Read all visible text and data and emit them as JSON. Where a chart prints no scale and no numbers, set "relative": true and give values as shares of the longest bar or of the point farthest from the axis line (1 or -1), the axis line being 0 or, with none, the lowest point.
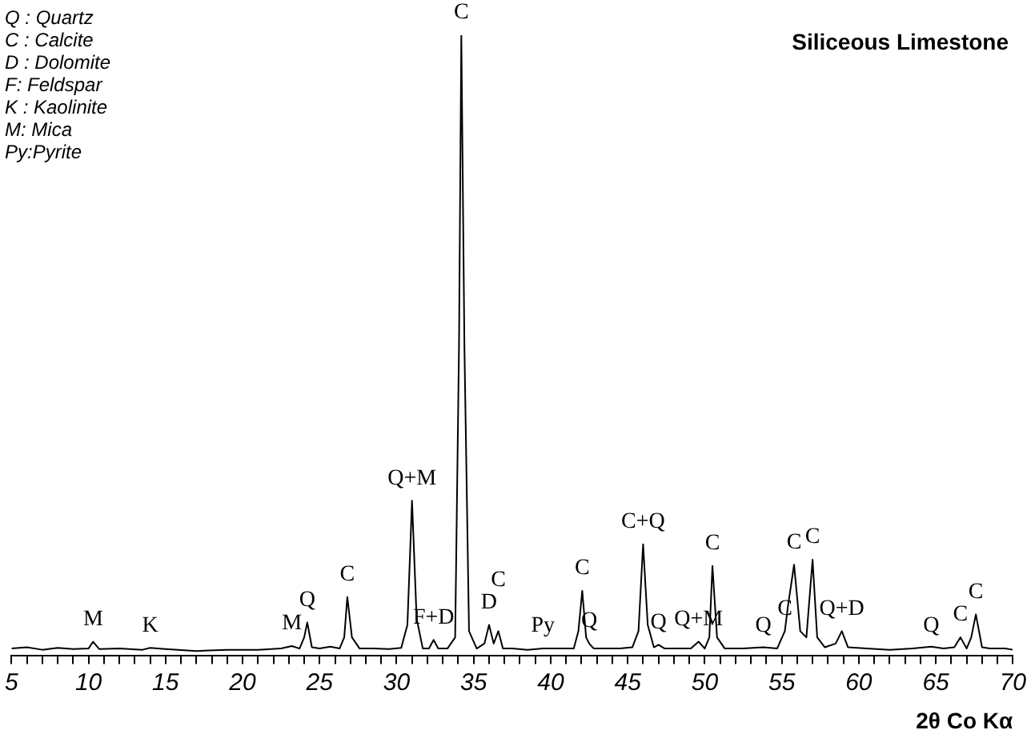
{
  "chart_data": {
    "type": "line",
    "relative": true,
    "title": "Siliceous Limestone",
    "xlabel": "2θ Co Kα",
    "xlim": [
      5,
      70
    ],
    "xticks": [
      5,
      {
        "value": 6,
        "label": null
      },
      {
        "value": 7,
        "label": null
      },
      {
        "value": 8,
        "label": null
      },
      {
        "value": 9,
        "label": null
      },
      10,
      {
        "value": 11,
        "label": null
      },
      {
        "value": 12,
        "label": null
      },
      {
        "value": 13,
        "label": null
      },
      {
        "value": 14,
        "label": null
      },
      15,
      {
        "value": 16,
        "label": null
      },
      {
        "value": 17,
        "label": null
      },
      {
        "value": 18,
        "label": null
      },
      {
        "value": 19,
        "label": null
      },
      20,
      {
        "value": 21,
        "label": null
      },
      {
        "value": 22,
        "label": null
      },
      {
        "value": 23,
        "label": null
      },
      {
        "value": 24,
        "label": null
      },
      25,
      {
        "value": 26,
        "label": null
      },
      {
        "value": 27,
        "label": null
      },
      {
        "value": 28,
        "label": null
      },
      {
        "value": 29,
        "label": null
      },
      30,
      {
        "value": 31,
        "label": null
      },
      {
        "value": 32,
        "label": null
      },
      {
        "value": 33,
        "label": null
      },
      {
        "value": 34,
        "label": null
      },
      35,
      {
        "value": 36,
        "label": null
      },
      {
        "value": 37,
        "label": null
      },
      {
        "value": 38,
        "label": null
      },
      {
        "value": 39,
        "label": null
      },
      40,
      {
        "value": 41,
        "label": null
      },
      {
        "value": 42,
        "label": null
      },
      {
        "value": 43,
        "label": null
      },
      {
        "value": 44,
        "label": null
      },
      45,
      {
        "value": 46,
        "label": null
      },
      {
        "value": 47,
        "label": null
      },
      {
        "value": 48,
        "label": null
      },
      {
        "value": 49,
        "label": null
      },
      50,
      {
        "value": 51,
        "label": null
      },
      {
        "value": 52,
        "label": null
      },
      {
        "value": 53,
        "label": null
      },
      {
        "value": 54,
        "label": null
      },
      55,
      {
        "value": 56,
        "label": null
      },
      {
        "value": 57,
        "label": null
      },
      {
        "value": 58,
        "label": null
      },
      {
        "value": 59,
        "label": null
      },
      60,
      {
        "value": 61,
        "label": null
      },
      {
        "value": 62,
        "label": null
      },
      {
        "value": 63,
        "label": null
      },
      {
        "value": 64,
        "label": null
      },
      65,
      {
        "value": 66,
        "label": null
      },
      {
        "value": 67,
        "label": null
      },
      {
        "value": 68,
        "label": null
      },
      {
        "value": 69,
        "label": null
      },
      70
    ],
    "x": [
      5,
      6,
      7,
      8,
      9,
      10,
      10.3,
      10.7,
      12,
      13.5,
      14,
      15,
      17,
      19,
      21,
      22.5,
      23.2,
      23.7,
      24.0,
      24.2,
      24.5,
      25,
      25.7,
      26.3,
      26.6,
      26.8,
      27.1,
      27.6,
      28.5,
      29.5,
      30.3,
      30.7,
      31.0,
      31.3,
      31.7,
      32.1,
      32.4,
      32.7,
      33.3,
      33.8,
      34.05,
      34.2,
      34.4,
      34.7,
      35.2,
      35.7,
      36.0,
      36.3,
      36.6,
      36.9,
      37.5,
      38.5,
      39.5,
      40.5,
      41.5,
      41.8,
      42.05,
      42.3,
      42.5,
      42.8,
      43.5,
      44.5,
      45.3,
      45.7,
      46.0,
      46.3,
      46.7,
      47.0,
      47.4,
      48.3,
      49.1,
      49.6,
      50.0,
      50.3,
      50.5,
      50.8,
      51.3,
      52.5,
      53.8,
      54.7,
      55.2,
      55.4,
      55.8,
      56.2,
      56.6,
      57.0,
      57.3,
      57.8,
      58.5,
      58.9,
      59.3,
      60.5,
      62,
      63.5,
      64.7,
      65.5,
      66.2,
      66.6,
      67.0,
      67.3,
      67.6,
      68,
      68.5,
      69.5,
      70
    ],
    "series": [
      {
        "color": "#000000",
        "values": [
          0.012,
          0.014,
          0.01,
          0.013,
          0.011,
          0.012,
          0.023,
          0.011,
          0.012,
          0.01,
          0.013,
          0.011,
          0.008,
          0.01,
          0.01,
          0.012,
          0.016,
          0.012,
          0.03,
          0.054,
          0.014,
          0.012,
          0.015,
          0.012,
          0.03,
          0.095,
          0.03,
          0.012,
          0.012,
          0.011,
          0.013,
          0.05,
          0.25,
          0.06,
          0.012,
          0.012,
          0.026,
          0.012,
          0.012,
          0.03,
          0.5,
          1,
          0.5,
          0.04,
          0.012,
          0.02,
          0.05,
          0.02,
          0.04,
          0.012,
          0.012,
          0.01,
          0.012,
          0.012,
          0.012,
          0.04,
          0.105,
          0.03,
          0.02,
          0.012,
          0.012,
          0.012,
          0.014,
          0.04,
          0.18,
          0.05,
          0.014,
          0.018,
          0.012,
          0.012,
          0.012,
          0.023,
          0.012,
          0.03,
          0.145,
          0.03,
          0.012,
          0.012,
          0.014,
          0.012,
          0.04,
          0.08,
          0.147,
          0.04,
          0.03,
          0.155,
          0.03,
          0.014,
          0.02,
          0.04,
          0.014,
          0.012,
          0.01,
          0.012,
          0.015,
          0.012,
          0.014,
          0.03,
          0.012,
          0.03,
          0.067,
          0.014,
          0.012,
          0.012,
          0.01
        ]
      }
    ],
    "annotations": [
      "Q : Quartz",
      "C : Calcite",
      "D : Dolomite",
      "F:  Feldspar",
      "K : Kaolinite",
      "M: Mica",
      "Py:Pyrite",
      {
        "text": "M",
        "x": 10.3,
        "y": 0.023
      },
      {
        "text": "K",
        "x": 14,
        "y": 0.013
      },
      {
        "text": "M",
        "x": 23.2,
        "y": 0.016
      },
      {
        "text": "Q",
        "x": 24.2,
        "y": 0.054
      },
      {
        "text": "C",
        "x": 26.8,
        "y": 0.095
      },
      {
        "text": "Q+M",
        "x": 31.0,
        "y": 0.25
      },
      {
        "text": "F+D",
        "x": 32.4,
        "y": 0.026
      },
      {
        "text": "C",
        "x": 34.2,
        "y": 1
      },
      {
        "text": "D",
        "x": 36.0,
        "y": 0.05
      },
      {
        "text": "C",
        "x": 36.6,
        "y": 0.04
      },
      {
        "text": "Py",
        "x": 39.5,
        "y": 0.012
      },
      {
        "text": "C",
        "x": 42.05,
        "y": 0.105
      },
      {
        "text": "Q",
        "x": 42.5,
        "y": 0.02
      },
      {
        "text": "C+Q",
        "x": 46.0,
        "y": 0.18
      },
      {
        "text": "Q",
        "x": 47.0,
        "y": 0.018
      },
      {
        "text": "Q+M",
        "x": 49.6,
        "y": 0.023
      },
      {
        "text": "C",
        "x": 50.5,
        "y": 0.145
      },
      {
        "text": "Q",
        "x": 53.8,
        "y": 0.012
      },
      {
        "text": "C",
        "x": 55.2,
        "y": 0.04
      },
      {
        "text": "C",
        "x": 55.8,
        "y": 0.147
      },
      {
        "text": "C",
        "x": 57.0,
        "y": 0.155
      },
      {
        "text": "Q+D",
        "x": 58.9,
        "y": 0.04
      },
      {
        "text": "Q",
        "x": 64.7,
        "y": 0.012
      },
      {
        "text": "C",
        "x": 66.6,
        "y": 0.03
      },
      {
        "text": "C",
        "x": 67.6,
        "y": 0.067
      }
    ]
  }
}
